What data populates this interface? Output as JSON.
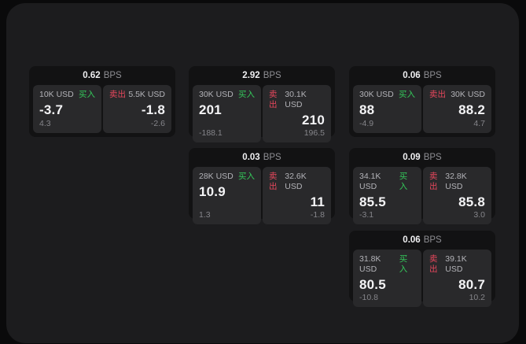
{
  "labels": {
    "bps_unit": "BPS",
    "buy": "买入",
    "sell": "卖出"
  },
  "colors": {
    "buy": "#34c85a",
    "sell": "#e8475c"
  },
  "cards": [
    {
      "bps": "0.62",
      "buy": {
        "amount": "10K USD",
        "main": "-3.7",
        "sub": "4.3"
      },
      "sell": {
        "amount": "5.5K USD",
        "main": "-1.8",
        "sub": "-2.6"
      }
    },
    {
      "bps": "2.92",
      "buy": {
        "amount": "30K USD",
        "main": "201",
        "sub": "-188.1"
      },
      "sell": {
        "amount": "30.1K USD",
        "main": "210",
        "sub": "196.5"
      }
    },
    {
      "bps": "0.06",
      "buy": {
        "amount": "30K USD",
        "main": "88",
        "sub": "-4.9"
      },
      "sell": {
        "amount": "30K USD",
        "main": "88.2",
        "sub": "4.7"
      }
    },
    {
      "bps": "0.03",
      "buy": {
        "amount": "28K USD",
        "main": "10.9",
        "sub": "1.3"
      },
      "sell": {
        "amount": "32.6K USD",
        "main": "11",
        "sub": "-1.8"
      }
    },
    {
      "bps": "0.09",
      "buy": {
        "amount": "34.1K USD",
        "main": "85.5",
        "sub": "-3.1"
      },
      "sell": {
        "amount": "32.8K USD",
        "main": "85.8",
        "sub": "3.0"
      }
    },
    {
      "bps": "0.06",
      "buy": {
        "amount": "31.8K USD",
        "main": "80.5",
        "sub": "-10.8"
      },
      "sell": {
        "amount": "39.1K USD",
        "main": "80.7",
        "sub": "10.2"
      }
    }
  ]
}
